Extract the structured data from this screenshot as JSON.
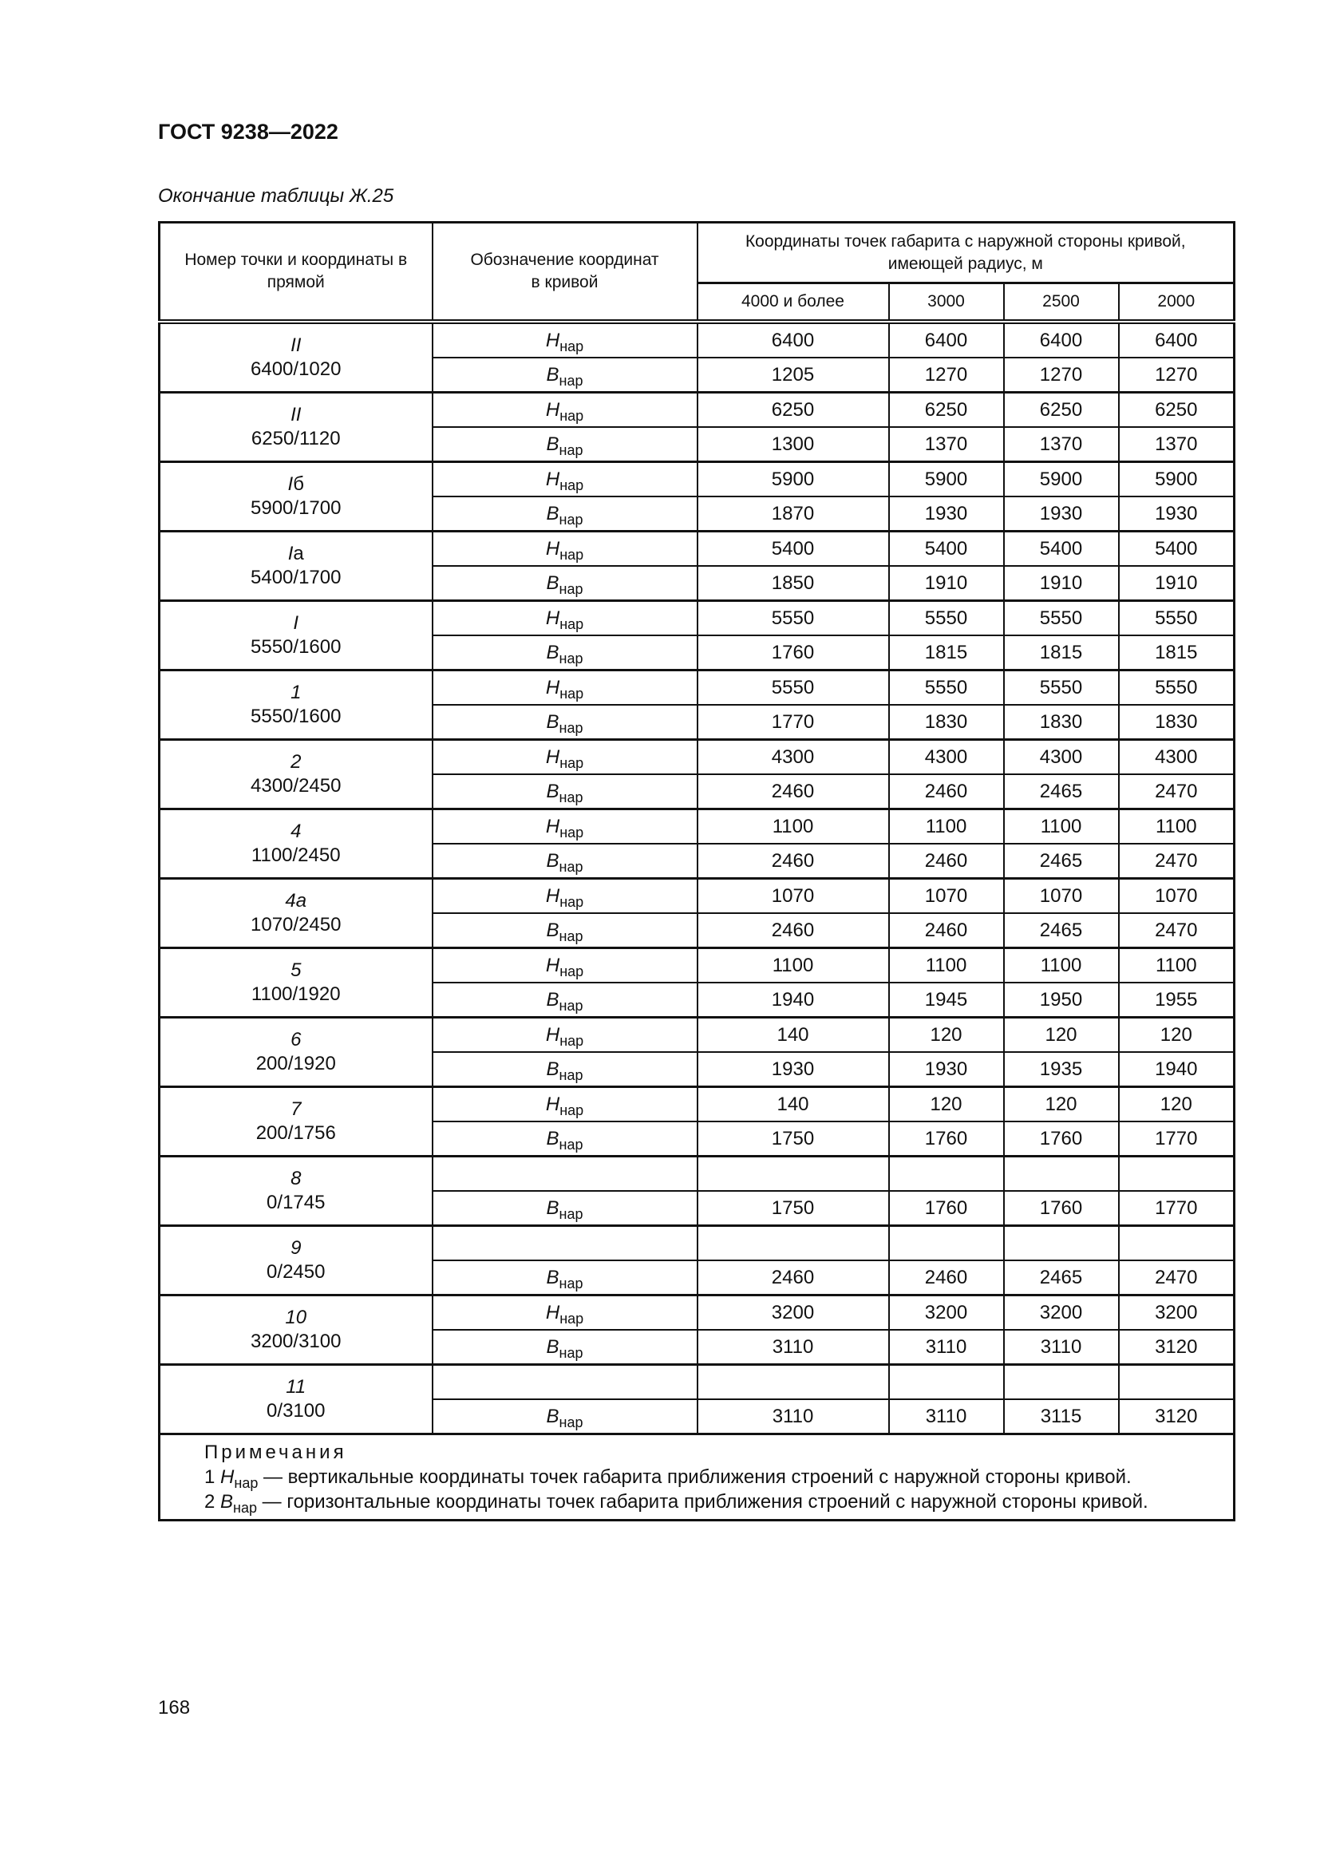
{
  "header": {
    "title": "ГОСТ 9238—2022"
  },
  "caption": "Окончание таблицы Ж.25",
  "table": {
    "col_point": "Номер точки и координаты в прямой",
    "col_symbol": "Обозначение координат в кривой",
    "col_group": "Координаты точек габарита с наружной стороны кривой, имеющей радиус, м",
    "radii": [
      "4000 и более",
      "3000",
      "2500",
      "2000"
    ],
    "sym_h": "H",
    "sym_b": "B",
    "sym_sub": "нар",
    "groups": [
      {
        "label": "II",
        "suffix": "",
        "coords": "6400/1020",
        "h": [
          "6400",
          "6400",
          "6400",
          "6400"
        ],
        "b": [
          "1205",
          "1270",
          "1270",
          "1270"
        ]
      },
      {
        "label": "II",
        "suffix": "",
        "coords": "6250/1120",
        "h": [
          "6250",
          "6250",
          "6250",
          "6250"
        ],
        "b": [
          "1300",
          "1370",
          "1370",
          "1370"
        ]
      },
      {
        "label": "I",
        "suffix": "б",
        "coords": "5900/1700",
        "h": [
          "5900",
          "5900",
          "5900",
          "5900"
        ],
        "b": [
          "1870",
          "1930",
          "1930",
          "1930"
        ]
      },
      {
        "label": "I",
        "suffix": "a",
        "coords": "5400/1700",
        "h": [
          "5400",
          "5400",
          "5400",
          "5400"
        ],
        "b": [
          "1850",
          "1910",
          "1910",
          "1910"
        ]
      },
      {
        "label": "I",
        "suffix": "",
        "coords": "5550/1600",
        "h": [
          "5550",
          "5550",
          "5550",
          "5550"
        ],
        "b": [
          "1760",
          "1815",
          "1815",
          "1815"
        ]
      },
      {
        "label": "1",
        "suffix": "",
        "coords": "5550/1600",
        "h": [
          "5550",
          "5550",
          "5550",
          "5550"
        ],
        "b": [
          "1770",
          "1830",
          "1830",
          "1830"
        ]
      },
      {
        "label": "2",
        "suffix": "",
        "coords": "4300/2450",
        "h": [
          "4300",
          "4300",
          "4300",
          "4300"
        ],
        "b": [
          "2460",
          "2460",
          "2465",
          "2470"
        ]
      },
      {
        "label": "4",
        "suffix": "",
        "coords": "1100/2450",
        "h": [
          "1100",
          "1100",
          "1100",
          "1100"
        ],
        "b": [
          "2460",
          "2460",
          "2465",
          "2470"
        ]
      },
      {
        "label": "4a",
        "suffix": "",
        "coords": "1070/2450",
        "h": [
          "1070",
          "1070",
          "1070",
          "1070"
        ],
        "b": [
          "2460",
          "2460",
          "2465",
          "2470"
        ]
      },
      {
        "label": "5",
        "suffix": "",
        "coords": "1100/1920",
        "h": [
          "1100",
          "1100",
          "1100",
          "1100"
        ],
        "b": [
          "1940",
          "1945",
          "1950",
          "1955"
        ]
      },
      {
        "label": "6",
        "suffix": "",
        "coords": "200/1920",
        "h": [
          "140",
          "120",
          "120",
          "120"
        ],
        "b": [
          "1930",
          "1930",
          "1935",
          "1940"
        ]
      },
      {
        "label": "7",
        "suffix": "",
        "coords": "200/1756",
        "h": [
          "140",
          "120",
          "120",
          "120"
        ],
        "b": [
          "1750",
          "1760",
          "1760",
          "1770"
        ]
      },
      {
        "label": "8",
        "suffix": "",
        "coords": "0/1745",
        "h": null,
        "b": [
          "1750",
          "1760",
          "1760",
          "1770"
        ]
      },
      {
        "label": "9",
        "suffix": "",
        "coords": "0/2450",
        "h": null,
        "b": [
          "2460",
          "2460",
          "2465",
          "2470"
        ]
      },
      {
        "label": "10",
        "suffix": "",
        "coords": "3200/3100",
        "h": [
          "3200",
          "3200",
          "3200",
          "3200"
        ],
        "b": [
          "3110",
          "3110",
          "3110",
          "3120"
        ]
      },
      {
        "label": "11",
        "suffix": "",
        "coords": "0/3100",
        "h": null,
        "b": [
          "3110",
          "3110",
          "3115",
          "3120"
        ]
      }
    ],
    "notes": {
      "heading": "Примечания",
      "items": [
        {
          "num": "1",
          "sym": "H",
          "sub": "нар",
          "text": " — вертикальные координаты точек габарита приближения строений с наружной стороны кривой."
        },
        {
          "num": "2",
          "sym": "B",
          "sub": "нар",
          "text": " — горизонтальные координаты точек габарита приближения строений с наружной стороны кривой."
        }
      ]
    }
  },
  "page_number": "168"
}
